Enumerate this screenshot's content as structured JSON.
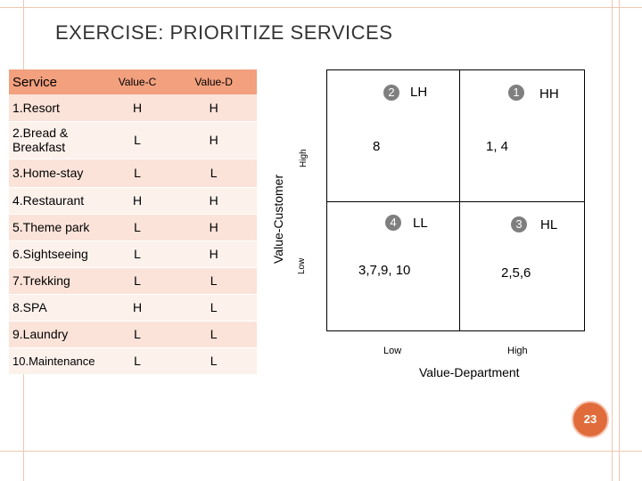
{
  "title": "EXERCISE: PRIORITIZE SERVICES",
  "table": {
    "headers": {
      "service": "Service",
      "value_c": "Value-C",
      "value_d": "Value-D"
    },
    "rows": [
      {
        "service": "1.Resort",
        "c": "H",
        "d": "H"
      },
      {
        "service": "2.Bread & Breakfast",
        "c": "L",
        "d": "H"
      },
      {
        "service": "3.Home-stay",
        "c": "L",
        "d": "L"
      },
      {
        "service": "4.Restaurant",
        "c": "H",
        "d": "H"
      },
      {
        "service": "5.Theme park",
        "c": "L",
        "d": "H"
      },
      {
        "service": "6.Sightseeing",
        "c": "L",
        "d": "H"
      },
      {
        "service": "7.Trekking",
        "c": "L",
        "d": "L"
      },
      {
        "service": "8.SPA",
        "c": "H",
        "d": "L"
      },
      {
        "service": "9.Laundry",
        "c": "L",
        "d": "L"
      },
      {
        "service": "10.Maintenance",
        "c": "L",
        "d": "L"
      }
    ]
  },
  "matrix": {
    "y_axis_label": "Value-Customer",
    "y_high": "High",
    "y_low": "Low",
    "x_axis_label": "Value-Department",
    "x_low": "Low",
    "x_high": "High",
    "quadrants": {
      "top_left": {
        "num": "2",
        "label": "LH",
        "values": "8"
      },
      "top_right": {
        "num": "1",
        "label": "HH",
        "values": "1, 4"
      },
      "bottom_left": {
        "num": "4",
        "label": "LL",
        "values": "3,7,9, 10"
      },
      "bottom_right": {
        "num": "3",
        "label": "HL",
        "values": "2,5,6"
      }
    }
  },
  "page_number": "23",
  "colors": {
    "header_bg": "#f2a07e",
    "row_dark": "#fbe3d9",
    "row_light": "#fdf1ec",
    "badge": "#7f7f7f",
    "page_badge": "#e06c3c"
  }
}
